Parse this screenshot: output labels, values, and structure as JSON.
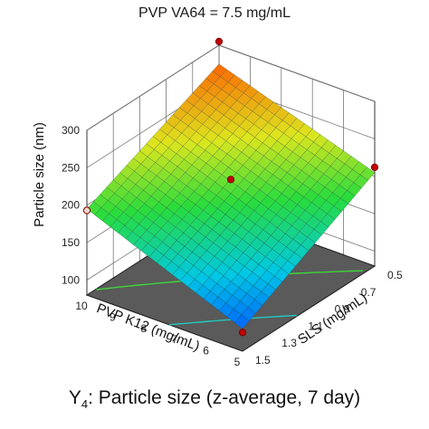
{
  "chart_data": {
    "type": "surface",
    "title": "PVP VA64 = 7.5 mg/mL",
    "caption": {
      "prefix": "Y",
      "subscript": "4",
      "text": ": Particle size (z-average, 7 day)"
    },
    "zlabel": "Particle size (nm)",
    "xlabel": "PVP K12  (mg/mL)",
    "ylabel": "SLS (mg/mL)",
    "x_range": [
      5,
      10
    ],
    "y_range": [
      0.5,
      1.5
    ],
    "z_range": [
      80,
      300
    ],
    "z_ticks": [
      "100",
      "150",
      "200",
      "250",
      "300"
    ],
    "x_ticks": [
      "5",
      "6",
      "7",
      "8",
      "9",
      "10"
    ],
    "y_ticks": [
      "1.5",
      "1.3",
      "1.1",
      "0.9",
      "0.7",
      "0.5"
    ],
    "surface_corners": {
      "x10_y1.5": 195,
      "x5_y1.5": 110,
      "x10_y0.5": 275,
      "x5_y0.5": 205
    },
    "design_points": [
      {
        "x": 10,
        "y": 1.5,
        "z": 193
      },
      {
        "x": 7.5,
        "y": 1.0,
        "z": 215
      },
      {
        "x": 10,
        "y": 0.5,
        "z": 305
      },
      {
        "x": 5,
        "y": 0.5,
        "z": 212
      },
      {
        "x": 5,
        "y": 1.5,
        "z": 105
      }
    ],
    "contours": [
      {
        "level": 150,
        "color": "#22c8c0"
      },
      {
        "level": 200,
        "color": "#3cd63c"
      },
      {
        "level": 250,
        "color": "#e6d23a"
      }
    ],
    "grid": true
  }
}
